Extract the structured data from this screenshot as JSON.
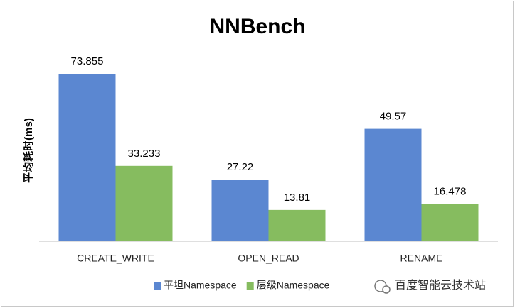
{
  "chart_data": {
    "type": "bar",
    "title": "NNBench",
    "y_label": "平均耗时(ms)",
    "categories": [
      "CREATE_WRITE",
      "OPEN_READ",
      "RENAME"
    ],
    "series": [
      {
        "name": "平坦Namespace",
        "color": "#5b87d1",
        "values": [
          73.855,
          27.22,
          49.57
        ]
      },
      {
        "name": "层级Namespace",
        "color": "#86bc5f",
        "values": [
          33.233,
          13.81,
          16.478
        ]
      }
    ],
    "legend": "bottom",
    "watermark": "百度智能云技术站"
  }
}
